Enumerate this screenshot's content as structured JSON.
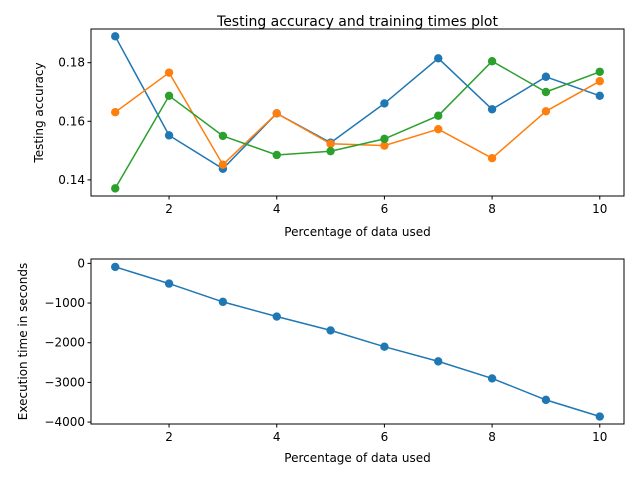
{
  "chart_data": [
    {
      "type": "line",
      "title": "Testing accuracy and training times plot",
      "xlabel": "Percentage of data used",
      "ylabel": "Testing accuracy",
      "x": [
        1,
        2,
        3,
        4,
        5,
        6,
        7,
        8,
        9,
        10
      ],
      "xticks": [
        2,
        4,
        6,
        8,
        10
      ],
      "xlim": [
        0.55,
        10.45
      ],
      "yticks": [
        0.14,
        0.16,
        0.18
      ],
      "ytick_labels": [
        "0.14",
        "0.16",
        "0.18"
      ],
      "ylim": [
        0.1345,
        0.1915
      ],
      "series": [
        {
          "color": "#1f77b4",
          "values": [
            0.189,
            0.1552,
            0.1438,
            0.1627,
            0.1527,
            0.1661,
            0.1815,
            0.1641,
            0.1752,
            0.1687
          ]
        },
        {
          "color": "#ff7f0e",
          "values": [
            0.1631,
            0.1766,
            0.1452,
            0.1627,
            0.1523,
            0.1517,
            0.1573,
            0.1474,
            0.1634,
            0.1737
          ]
        },
        {
          "color": "#2ca02c",
          "values": [
            0.1371,
            0.1687,
            0.155,
            0.1485,
            0.1498,
            0.154,
            0.1619,
            0.1805,
            0.17,
            0.1769
          ]
        }
      ]
    },
    {
      "type": "line",
      "title": "",
      "xlabel": "Percentage of data used",
      "ylabel": "Execution time in seconds",
      "x": [
        1,
        2,
        3,
        4,
        5,
        6,
        7,
        8,
        9,
        10
      ],
      "xticks": [
        2,
        4,
        6,
        8,
        10
      ],
      "xlim": [
        0.55,
        10.45
      ],
      "yticks": [
        0,
        -1000,
        -2000,
        -3000,
        -4000
      ],
      "ytick_labels": [
        "0",
        "−1000",
        "−2000",
        "−3000",
        "−4000"
      ],
      "ylim": [
        -4048,
        110
      ],
      "series": [
        {
          "color": "#1f77b4",
          "values": [
            -90,
            -510,
            -970,
            -1340,
            -1690,
            -2100,
            -2470,
            -2900,
            -3440,
            -3860
          ]
        }
      ]
    }
  ]
}
